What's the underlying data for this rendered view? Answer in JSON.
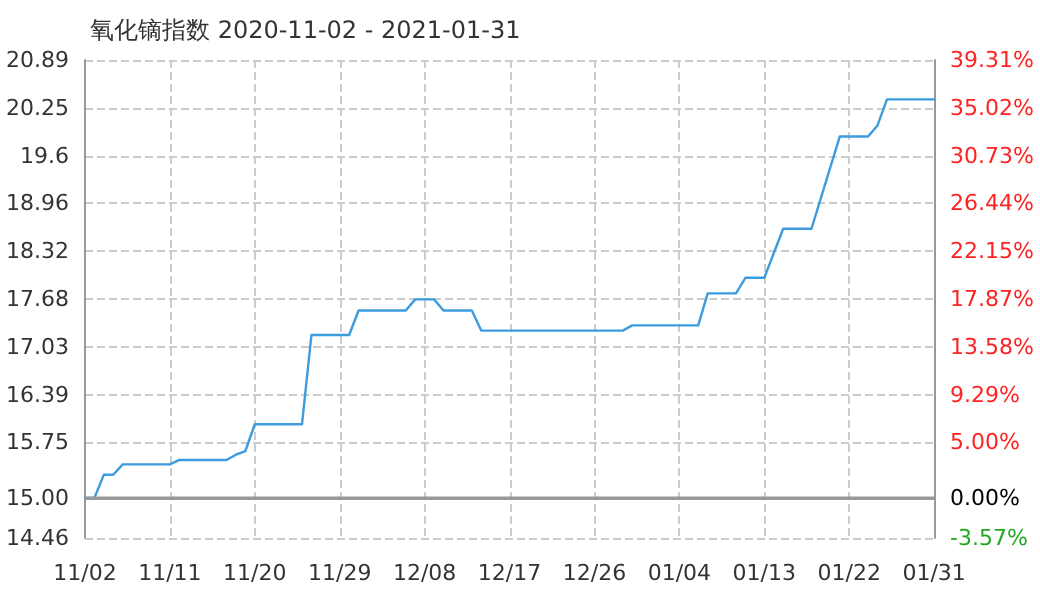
{
  "chart_data": {
    "type": "line",
    "title": "氧化镝指数 2020-11-02 - 2021-01-31",
    "x": [
      "2020-11-02",
      "2020-11-03",
      "2020-11-04",
      "2020-11-05",
      "2020-11-06",
      "2020-11-11",
      "2020-11-12",
      "2020-11-17",
      "2020-11-18",
      "2020-11-19",
      "2020-11-20",
      "2020-11-25",
      "2020-11-26",
      "2020-11-30",
      "2020-12-01",
      "2020-12-06",
      "2020-12-07",
      "2020-12-09",
      "2020-12-10",
      "2020-12-13",
      "2020-12-14",
      "2020-12-29",
      "2020-12-30",
      "2021-01-06",
      "2021-01-07",
      "2021-01-10",
      "2021-01-11",
      "2021-01-13",
      "2021-01-15",
      "2021-01-18",
      "2021-01-21",
      "2021-01-24",
      "2021-01-25",
      "2021-01-26",
      "2021-01-31"
    ],
    "series": [
      {
        "color": "#3d9be0",
        "values": [
          15.0,
          15.0,
          15.31,
          15.31,
          15.45,
          15.45,
          15.51,
          15.51,
          15.58,
          15.63,
          15.99,
          15.99,
          17.19,
          17.19,
          17.52,
          17.52,
          17.67,
          17.67,
          17.52,
          17.52,
          17.25,
          17.25,
          17.32,
          17.32,
          17.75,
          17.75,
          17.96,
          17.96,
          18.62,
          18.62,
          19.86,
          19.86,
          20.01,
          20.36,
          20.36
        ]
      }
    ],
    "xlim": [
      "2020-11-02",
      "2021-01-31"
    ],
    "xticks": [
      {
        "value": "2020-11-02",
        "label": "11/02"
      },
      {
        "value": "2020-11-11",
        "label": "11/11"
      },
      {
        "value": "2020-11-20",
        "label": "11/20"
      },
      {
        "value": "2020-11-29",
        "label": "11/29"
      },
      {
        "value": "2020-12-08",
        "label": "12/08"
      },
      {
        "value": "2020-12-17",
        "label": "12/17"
      },
      {
        "value": "2020-12-26",
        "label": "12/26"
      },
      {
        "value": "2021-01-04",
        "label": "01/04"
      },
      {
        "value": "2021-01-13",
        "label": "01/13"
      },
      {
        "value": "2021-01-22",
        "label": "01/22"
      },
      {
        "value": "2021-01-31",
        "label": "01/31"
      }
    ],
    "ylim": [
      14.46,
      20.89
    ],
    "yticks": [
      14.46,
      {
        "value": 15,
        "label": "15.00"
      },
      15.75,
      16.39,
      17.03,
      17.68,
      18.32,
      18.96,
      19.6,
      20.25,
      20.89
    ],
    "y2lim": [
      -3.57,
      39.31
    ],
    "y2ticks": [
      {
        "value": -3.57,
        "label": "-3.57%"
      },
      {
        "value": 0,
        "label": "0.00%"
      },
      {
        "value": 5,
        "label": "5.00%"
      },
      {
        "value": 9.29,
        "label": "9.29%"
      },
      {
        "value": 13.58,
        "label": "13.58%"
      },
      {
        "value": 17.87,
        "label": "17.87%"
      },
      {
        "value": 22.15,
        "label": "22.15%"
      },
      {
        "value": 26.44,
        "label": "26.44%"
      },
      {
        "value": 30.73,
        "label": "30.73%"
      },
      {
        "value": 35.02,
        "label": "35.02%"
      },
      {
        "value": 39.31,
        "label": "39.31%"
      }
    ],
    "ref_lines": [
      {
        "axis": "y",
        "value": 15.0,
        "color": "#999999",
        "line_style": "solid"
      }
    ],
    "grid": true,
    "marker": "none",
    "line_style": "solid"
  }
}
